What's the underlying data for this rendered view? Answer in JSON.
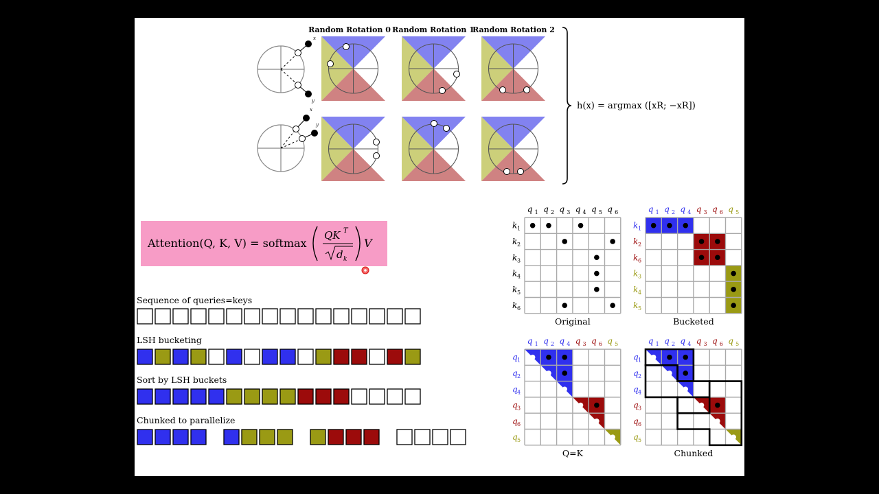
{
  "rotations": {
    "titles": [
      "Random Rotation 0",
      "Random Rotation 1",
      "Random Rotation 2"
    ],
    "x_label": "x",
    "y_label": "y",
    "hash_fn": "h(x) = argmax ([xR; −xR])"
  },
  "attention": {
    "lhs": "Attention(Q, K, V) = softmax",
    "num": "QK",
    "sup": "T",
    "den": "d",
    "sub": "k",
    "tail": "V"
  },
  "rows": [
    {
      "label": "Sequence of queries=keys",
      "cells": [
        "w",
        "w",
        "w",
        "w",
        "w",
        "w",
        "w",
        "w",
        "w",
        "w",
        "w",
        "w",
        "w",
        "w",
        "w",
        "w"
      ]
    },
    {
      "label": "LSH bucketing",
      "cells": [
        "b",
        "o",
        "b",
        "o",
        "w",
        "b",
        "w",
        "b",
        "b",
        "w",
        "o",
        "r",
        "r",
        "w",
        "r",
        "o"
      ]
    },
    {
      "label": "Sort by LSH buckets",
      "cells": [
        "b",
        "b",
        "b",
        "b",
        "b",
        "o",
        "o",
        "o",
        "o",
        "r",
        "r",
        "r",
        "w",
        "w",
        "w",
        "w"
      ]
    },
    {
      "label": "Chunked to parallelize",
      "cells": [
        "b",
        "b",
        "b",
        "b",
        "|",
        "b",
        "o",
        "o",
        "o",
        "|",
        "o",
        "r",
        "r",
        "r",
        "|",
        "w",
        "w",
        "w",
        "w"
      ]
    }
  ],
  "colors": {
    "b": "#3030ee",
    "o": "#9a9a14",
    "r": "#9c0b0b",
    "w": "#ffffff",
    "pink": "#f79cc6"
  },
  "matrices": {
    "original": {
      "caption": "Original",
      "cols": [
        {
          "t": "q",
          "s": "1",
          "c": "k"
        },
        {
          "t": "q",
          "s": "2",
          "c": "k"
        },
        {
          "t": "q",
          "s": "3",
          "c": "k"
        },
        {
          "t": "q",
          "s": "4",
          "c": "k"
        },
        {
          "t": "q",
          "s": "5",
          "c": "k"
        },
        {
          "t": "q",
          "s": "6",
          "c": "k"
        }
      ],
      "rows": [
        {
          "t": "k",
          "s": "1",
          "c": "k"
        },
        {
          "t": "k",
          "s": "2",
          "c": "k"
        },
        {
          "t": "k",
          "s": "3",
          "c": "k"
        },
        {
          "t": "k",
          "s": "4",
          "c": "k"
        },
        {
          "t": "k",
          "s": "5",
          "c": "k"
        },
        {
          "t": "k",
          "s": "6",
          "c": "k"
        }
      ],
      "fills": [],
      "dots": [
        [
          0,
          0,
          "k"
        ],
        [
          0,
          1,
          "k"
        ],
        [
          0,
          3,
          "k"
        ],
        [
          1,
          2,
          "k"
        ],
        [
          1,
          5,
          "k"
        ],
        [
          2,
          4,
          "k"
        ],
        [
          3,
          4,
          "k"
        ],
        [
          4,
          4,
          "k"
        ],
        [
          5,
          2,
          "k"
        ],
        [
          5,
          5,
          "k"
        ]
      ]
    },
    "bucketed": {
      "caption": "Bucketed",
      "cols": [
        {
          "t": "q",
          "s": "1",
          "c": "b"
        },
        {
          "t": "q",
          "s": "2",
          "c": "b"
        },
        {
          "t": "q",
          "s": "4",
          "c": "b"
        },
        {
          "t": "q",
          "s": "3",
          "c": "r"
        },
        {
          "t": "q",
          "s": "6",
          "c": "r"
        },
        {
          "t": "q",
          "s": "5",
          "c": "o"
        }
      ],
      "rows": [
        {
          "t": "k",
          "s": "1",
          "c": "b"
        },
        {
          "t": "k",
          "s": "2",
          "c": "r"
        },
        {
          "t": "k",
          "s": "6",
          "c": "r"
        },
        {
          "t": "k",
          "s": "3",
          "c": "o"
        },
        {
          "t": "k",
          "s": "4",
          "c": "o"
        },
        {
          "t": "k",
          "s": "5",
          "c": "o"
        }
      ],
      "fills": [
        [
          0,
          0,
          "b"
        ],
        [
          0,
          1,
          "b"
        ],
        [
          0,
          2,
          "b"
        ],
        [
          1,
          3,
          "r"
        ],
        [
          1,
          4,
          "r"
        ],
        [
          2,
          3,
          "r"
        ],
        [
          2,
          4,
          "r"
        ],
        [
          3,
          5,
          "o"
        ],
        [
          4,
          5,
          "o"
        ],
        [
          5,
          5,
          "o"
        ]
      ],
      "dots": [
        [
          0,
          0,
          "k"
        ],
        [
          0,
          1,
          "k"
        ],
        [
          0,
          2,
          "k"
        ],
        [
          1,
          3,
          "k"
        ],
        [
          1,
          4,
          "k"
        ],
        [
          2,
          3,
          "k"
        ],
        [
          2,
          4,
          "k"
        ],
        [
          3,
          5,
          "k"
        ],
        [
          4,
          5,
          "k"
        ],
        [
          5,
          5,
          "k"
        ]
      ]
    },
    "qk": {
      "caption": "Q=K",
      "cols": [
        {
          "t": "q",
          "s": "1",
          "c": "b"
        },
        {
          "t": "q",
          "s": "2",
          "c": "b"
        },
        {
          "t": "q",
          "s": "4",
          "c": "b"
        },
        {
          "t": "q",
          "s": "3",
          "c": "r"
        },
        {
          "t": "q",
          "s": "6",
          "c": "r"
        },
        {
          "t": "q",
          "s": "5",
          "c": "o"
        }
      ],
      "rows": [
        {
          "t": "q",
          "s": "1",
          "c": "b"
        },
        {
          "t": "q",
          "s": "2",
          "c": "b"
        },
        {
          "t": "q",
          "s": "4",
          "c": "b"
        },
        {
          "t": "q",
          "s": "3",
          "c": "r"
        },
        {
          "t": "q",
          "s": "6",
          "c": "r"
        },
        {
          "t": "q",
          "s": "5",
          "c": "o"
        }
      ],
      "fills": [
        [
          0,
          0,
          "bt"
        ],
        [
          0,
          1,
          "b"
        ],
        [
          0,
          2,
          "b"
        ],
        [
          1,
          1,
          "bt"
        ],
        [
          1,
          2,
          "b"
        ],
        [
          2,
          2,
          "bt"
        ],
        [
          3,
          3,
          "rt"
        ],
        [
          3,
          4,
          "r"
        ],
        [
          4,
          4,
          "rt"
        ],
        [
          5,
          5,
          "ot"
        ]
      ],
      "dots": [
        [
          0,
          0,
          "w"
        ],
        [
          0,
          1,
          "k"
        ],
        [
          0,
          2,
          "k"
        ],
        [
          1,
          1,
          "w"
        ],
        [
          1,
          2,
          "k"
        ],
        [
          2,
          2,
          "w"
        ],
        [
          3,
          3,
          "w"
        ],
        [
          3,
          4,
          "k"
        ],
        [
          4,
          4,
          "w"
        ],
        [
          5,
          5,
          "w"
        ]
      ]
    },
    "chunked": {
      "caption": "Chunked",
      "cols": [
        {
          "t": "q",
          "s": "1",
          "c": "b"
        },
        {
          "t": "q",
          "s": "2",
          "c": "b"
        },
        {
          "t": "q",
          "s": "4",
          "c": "b"
        },
        {
          "t": "q",
          "s": "3",
          "c": "r"
        },
        {
          "t": "q",
          "s": "6",
          "c": "r"
        },
        {
          "t": "q",
          "s": "5",
          "c": "o"
        }
      ],
      "rows": [
        {
          "t": "q",
          "s": "1",
          "c": "b"
        },
        {
          "t": "q",
          "s": "2",
          "c": "b"
        },
        {
          "t": "q",
          "s": "4",
          "c": "b"
        },
        {
          "t": "q",
          "s": "3",
          "c": "r"
        },
        {
          "t": "q",
          "s": "6",
          "c": "r"
        },
        {
          "t": "q",
          "s": "5",
          "c": "o"
        }
      ],
      "fills": [
        [
          0,
          0,
          "bt"
        ],
        [
          0,
          1,
          "b"
        ],
        [
          0,
          2,
          "b"
        ],
        [
          1,
          1,
          "bt"
        ],
        [
          1,
          2,
          "b"
        ],
        [
          2,
          2,
          "bt"
        ],
        [
          3,
          3,
          "rt"
        ],
        [
          3,
          4,
          "r"
        ],
        [
          4,
          4,
          "rt"
        ],
        [
          5,
          5,
          "ot"
        ]
      ],
      "dots": [
        [
          0,
          0,
          "w"
        ],
        [
          0,
          1,
          "k"
        ],
        [
          0,
          2,
          "k"
        ],
        [
          1,
          1,
          "w"
        ],
        [
          1,
          2,
          "k"
        ],
        [
          2,
          2,
          "w"
        ],
        [
          3,
          3,
          "w"
        ],
        [
          3,
          4,
          "k"
        ],
        [
          4,
          4,
          "w"
        ],
        [
          5,
          5,
          "w"
        ]
      ],
      "chunks": true
    }
  }
}
